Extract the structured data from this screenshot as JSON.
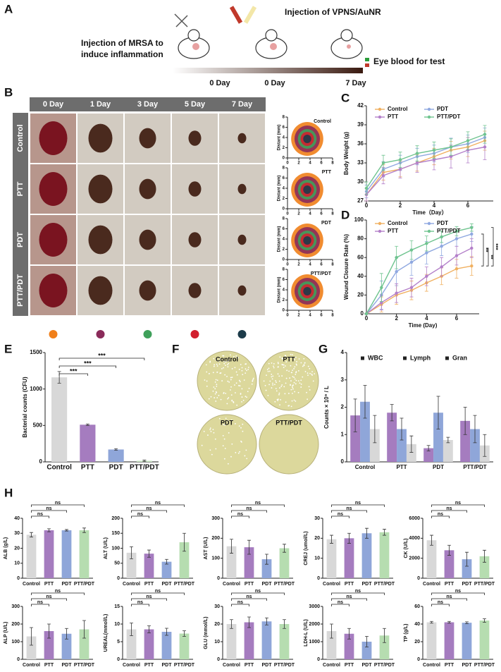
{
  "panel_labels": [
    "A",
    "B",
    "C",
    "D",
    "E",
    "F",
    "G",
    "H"
  ],
  "schematic": {
    "injection_treatment": "Injection of VPNS/AuNR",
    "injection_mrsa": [
      "Injection of MRSA to",
      "induce inflammation"
    ],
    "eye_blood": "Eye blood for test",
    "timeline": [
      "0 Day",
      "0 Day",
      "7 Day"
    ]
  },
  "wound_images": {
    "columns": [
      "0 Day",
      "1 Day",
      "3 Day",
      "5 Day",
      "7 Day"
    ],
    "rows": [
      "Control",
      "PTT",
      "PDT",
      "PTT/PDT"
    ]
  },
  "plates": {
    "labels": [
      "Control",
      "PTT",
      "PDT",
      "PTT/PDT"
    ]
  },
  "chart_data": [
    {
      "type": "contour",
      "title": "Control",
      "ylabel": "Distant (mm)",
      "xlim": [
        0,
        8
      ],
      "ylim": [
        0,
        8
      ],
      "xticks": [
        0,
        2,
        4,
        6,
        8
      ],
      "yticks": [
        0,
        2,
        4,
        6,
        8
      ]
    },
    {
      "type": "contour",
      "title": "PTT",
      "ylabel": "Distant (mm)",
      "xlim": [
        0,
        8
      ],
      "ylim": [
        0,
        8
      ],
      "xticks": [
        0,
        2,
        4,
        6,
        8
      ],
      "yticks": [
        0,
        2,
        4,
        6,
        8
      ]
    },
    {
      "type": "contour",
      "title": "PDT",
      "ylabel": "Distant (mm)",
      "xlim": [
        0,
        8
      ],
      "ylim": [
        0,
        8
      ],
      "xticks": [
        0,
        2,
        4,
        6,
        8
      ],
      "yticks": [
        0,
        2,
        4,
        6,
        8
      ]
    },
    {
      "type": "contour",
      "title": "PTT/PDT",
      "ylabel": "Distant (mm)",
      "xlim": [
        0,
        8
      ],
      "ylim": [
        0,
        8
      ],
      "xticks": [
        0,
        2,
        4,
        6,
        8
      ],
      "yticks": [
        0,
        2,
        4,
        6,
        8
      ]
    },
    {
      "type": "line",
      "xlabel": "Time（Day）",
      "ylabel": "Body Weight (g)",
      "x": [
        0,
        1,
        2,
        3,
        4,
        5,
        6,
        7
      ],
      "xlim": [
        0,
        7.5
      ],
      "xticks": [
        0,
        2,
        4,
        6
      ],
      "ylim": [
        27,
        42
      ],
      "yticks": [
        27,
        30,
        33,
        36,
        39,
        42
      ],
      "series": [
        {
          "name": "Control",
          "color": "#f0b060",
          "values": [
            28,
            31.5,
            32,
            33,
            34,
            35,
            35.5,
            36.5
          ],
          "errors": [
            1,
            1.2,
            1.2,
            1.3,
            1.3,
            1.4,
            1.5,
            1.5
          ]
        },
        {
          "name": "PDT",
          "color": "#8fa8e0",
          "values": [
            28.5,
            32,
            33,
            34,
            34.5,
            35.5,
            36,
            37
          ],
          "errors": [
            1,
            1.2,
            1.2,
            1.3,
            1.3,
            1.4,
            1.4,
            1.5
          ]
        },
        {
          "name": "PTT",
          "color": "#b37fc9",
          "values": [
            28,
            31,
            32,
            33,
            33.5,
            34,
            35,
            35.5
          ],
          "errors": [
            1,
            1.3,
            1.4,
            1.5,
            1.6,
            1.8,
            2,
            2
          ]
        },
        {
          "name": "PTT/PDT",
          "color": "#6fc48f",
          "values": [
            29,
            33,
            33.5,
            34.5,
            35,
            35.5,
            36.5,
            37.5
          ],
          "errors": [
            1,
            1.2,
            1.2,
            1.2,
            1.3,
            1.3,
            1.4,
            1.4
          ]
        }
      ]
    },
    {
      "type": "line",
      "xlabel": "Time (Day)",
      "ylabel": "Wound Closure Rate (%)",
      "x": [
        0,
        1,
        2,
        3,
        4,
        5,
        6,
        7
      ],
      "xlim": [
        0,
        7.5
      ],
      "xticks": [
        0,
        2,
        4,
        6
      ],
      "ylim": [
        0,
        100
      ],
      "yticks": [
        0,
        20,
        40,
        60,
        80,
        100
      ],
      "significance": [
        "**",
        "**",
        "***"
      ],
      "series": [
        {
          "name": "Control",
          "color": "#f0b060",
          "values": [
            0,
            10,
            20,
            25,
            33,
            40,
            48,
            51
          ],
          "errors": [
            0,
            8,
            10,
            10,
            9,
            9,
            10,
            10
          ]
        },
        {
          "name": "PDT",
          "color": "#8fa8e0",
          "values": [
            0,
            20,
            45,
            55,
            65,
            72,
            80,
            85
          ],
          "errors": [
            0,
            15,
            15,
            14,
            12,
            10,
            8,
            8
          ]
        },
        {
          "name": "PTT",
          "color": "#b37fc9",
          "values": [
            0,
            12,
            22,
            28,
            40,
            50,
            62,
            70
          ],
          "errors": [
            0,
            8,
            10,
            10,
            10,
            10,
            10,
            10
          ]
        },
        {
          "name": "PTT/PDT",
          "color": "#6fc48f",
          "values": [
            0,
            28,
            60,
            68,
            75,
            82,
            88,
            92
          ],
          "errors": [
            0,
            15,
            12,
            10,
            8,
            6,
            5,
            4
          ]
        }
      ]
    },
    {
      "type": "bar",
      "ylabel": "Bacterial counts (CFU)",
      "categories": [
        "Control",
        "PTT",
        "PDT",
        "PTT/PDT"
      ],
      "values": [
        1160,
        510,
        170,
        15
      ],
      "errors": [
        80,
        10,
        10,
        10
      ],
      "colors": [
        "#d8d8d8",
        "#a57cbf",
        "#8fa6d9",
        "#c9e7c3"
      ],
      "ylim": [
        0,
        1500
      ],
      "yticks": [
        0,
        500,
        1000,
        1500
      ],
      "brackets": [
        "***",
        "***",
        "***"
      ]
    },
    {
      "type": "bar",
      "ylabel": "Counts × 10⁹ / L",
      "categories": [
        "Control",
        "PTT",
        "PDT",
        "PTT/PDT"
      ],
      "ylim": [
        0,
        4
      ],
      "yticks": [
        0,
        1,
        2,
        3,
        4
      ],
      "series": [
        {
          "name": "WBC",
          "color": "#a57cbf",
          "values": [
            1.7,
            1.8,
            0.5,
            1.5
          ],
          "errors": [
            0.6,
            0.3,
            0.1,
            0.5
          ]
        },
        {
          "name": "Lymph",
          "color": "#8fa6d9",
          "values": [
            2.2,
            1.2,
            1.8,
            1.2
          ],
          "errors": [
            0.6,
            0.4,
            0.6,
            0.5
          ]
        },
        {
          "name": "Gran",
          "color": "#d8d8d8",
          "values": [
            1.2,
            0.65,
            0.8,
            0.6
          ],
          "errors": [
            0.5,
            0.3,
            0.1,
            0.4
          ]
        }
      ]
    },
    {
      "type": "bar",
      "ylabel": "ALB (g/L)",
      "categories": [
        "Control",
        "PTT",
        "PDT",
        "PTT/PDT"
      ],
      "values": [
        29,
        32,
        32,
        32
      ],
      "errors": [
        1.5,
        1,
        0.5,
        1.5
      ],
      "colors": [
        "#d8d8d8",
        "#a57cbf",
        "#8fa6d9",
        "#b6ddb0"
      ],
      "ylim": [
        0,
        40
      ],
      "yticks": [
        0,
        10,
        20,
        30,
        40
      ],
      "brackets": [
        "ns",
        "ns",
        "ns"
      ]
    },
    {
      "type": "bar",
      "ylabel": "ALT (U/L)",
      "categories": [
        "Control",
        "PTT",
        "PDT",
        "PTT/PDT"
      ],
      "values": [
        85,
        82,
        55,
        120
      ],
      "errors": [
        20,
        12,
        8,
        30
      ],
      "colors": [
        "#d8d8d8",
        "#a57cbf",
        "#8fa6d9",
        "#b6ddb0"
      ],
      "ylim": [
        0,
        200
      ],
      "yticks": [
        0,
        50,
        100,
        150,
        200
      ],
      "brackets": [
        "ns",
        "ns",
        "ns"
      ]
    },
    {
      "type": "bar",
      "ylabel": "AST (U/L)",
      "categories": [
        "Control",
        "PTT",
        "PDT",
        "PTT/PDT"
      ],
      "values": [
        160,
        155,
        95,
        150
      ],
      "errors": [
        35,
        35,
        25,
        20
      ],
      "colors": [
        "#d8d8d8",
        "#a57cbf",
        "#8fa6d9",
        "#b6ddb0"
      ],
      "ylim": [
        0,
        300
      ],
      "yticks": [
        0,
        100,
        200,
        300
      ],
      "brackets": [
        "ns",
        "ns",
        "ns"
      ]
    },
    {
      "type": "bar",
      "ylabel": "CREJ (umol/L)",
      "categories": [
        "Control",
        "PTT",
        "PDT",
        "PTT/PDT"
      ],
      "values": [
        19.5,
        20,
        22.5,
        23
      ],
      "errors": [
        2,
        2.5,
        2.5,
        1.5
      ],
      "colors": [
        "#d8d8d8",
        "#a57cbf",
        "#8fa6d9",
        "#b6ddb0"
      ],
      "ylim": [
        0,
        30
      ],
      "yticks": [
        0,
        10,
        20,
        30
      ],
      "brackets": [
        "ns",
        "ns",
        "ns"
      ]
    },
    {
      "type": "bar",
      "ylabel": "CK (U/L)",
      "categories": [
        "Control",
        "PTT",
        "PDT",
        "PTT/PDT"
      ],
      "values": [
        3800,
        2800,
        1900,
        2200
      ],
      "errors": [
        500,
        500,
        700,
        600
      ],
      "colors": [
        "#d8d8d8",
        "#a57cbf",
        "#8fa6d9",
        "#b6ddb0"
      ],
      "ylim": [
        0,
        6000
      ],
      "yticks": [
        0,
        2000,
        4000,
        6000
      ],
      "brackets": [
        "ns",
        "ns",
        "ns"
      ]
    },
    {
      "type": "bar",
      "ylabel": "ALP (U/L)",
      "categories": [
        "Control",
        "PTT",
        "PDT",
        "PTT/PDT"
      ],
      "values": [
        130,
        160,
        145,
        170
      ],
      "errors": [
        50,
        40,
        30,
        50
      ],
      "colors": [
        "#d8d8d8",
        "#a57cbf",
        "#8fa6d9",
        "#b6ddb0"
      ],
      "ylim": [
        0,
        300
      ],
      "yticks": [
        0,
        100,
        200,
        300
      ],
      "brackets": [
        "ns",
        "ns",
        "ns"
      ]
    },
    {
      "type": "bar",
      "ylabel": "UREAL(mmol/L)",
      "categories": [
        "Control",
        "PTT",
        "PDT",
        "PTT/PDT"
      ],
      "values": [
        8.5,
        8.5,
        7.8,
        7.3
      ],
      "errors": [
        1.8,
        1,
        1,
        0.8
      ],
      "colors": [
        "#d8d8d8",
        "#a57cbf",
        "#8fa6d9",
        "#b6ddb0"
      ],
      "ylim": [
        0,
        15
      ],
      "yticks": [
        0,
        5,
        10,
        15
      ],
      "brackets": [
        "ns",
        "ns",
        "ns"
      ]
    },
    {
      "type": "bar",
      "ylabel": "GLU (mmol/L)",
      "categories": [
        "Control",
        "PTT",
        "PDT",
        "PTT/PDT"
      ],
      "values": [
        20,
        21,
        21.5,
        20
      ],
      "errors": [
        2.5,
        3,
        2,
        2.5
      ],
      "colors": [
        "#d8d8d8",
        "#a57cbf",
        "#8fa6d9",
        "#b6ddb0"
      ],
      "ylim": [
        0,
        30
      ],
      "yticks": [
        0,
        10,
        20,
        30
      ],
      "brackets": [
        "ns",
        "ns",
        "ns"
      ]
    },
    {
      "type": "bar",
      "ylabel": "LDH-L (U/L)",
      "categories": [
        "Control",
        "PTT",
        "PDT",
        "PTT/PDT"
      ],
      "values": [
        1600,
        1450,
        1000,
        1350
      ],
      "errors": [
        400,
        300,
        300,
        400
      ],
      "colors": [
        "#d8d8d8",
        "#a57cbf",
        "#8fa6d9",
        "#b6ddb0"
      ],
      "ylim": [
        0,
        3000
      ],
      "yticks": [
        0,
        1000,
        2000,
        3000
      ],
      "brackets": [
        "ns",
        "ns",
        "ns"
      ]
    },
    {
      "type": "bar",
      "ylabel": "TP (g/L)",
      "categories": [
        "Control",
        "PTT",
        "PDT",
        "PTT/PDT"
      ],
      "values": [
        42,
        42,
        41.5,
        44
      ],
      "errors": [
        1,
        1,
        1,
        2
      ],
      "colors": [
        "#d8d8d8",
        "#a57cbf",
        "#8fa6d9",
        "#b6ddb0"
      ],
      "ylim": [
        0,
        60
      ],
      "yticks": [
        0,
        20,
        40,
        60
      ],
      "brackets": [
        "ns",
        "ns",
        "ns"
      ]
    }
  ]
}
